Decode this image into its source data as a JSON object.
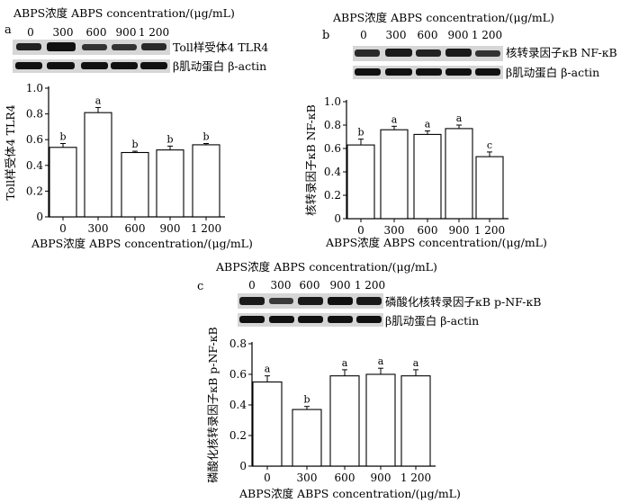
{
  "panel_a": {
    "letter": "a",
    "conc_title": "ABPS浓度 ABPS concentration/(μg/mL)",
    "conc_values": [
      "0",
      "300",
      "600",
      "900",
      "1 200"
    ],
    "blot_labels": [
      "Toll样受体4 TLR4",
      "β肌动蛋白 β-actin"
    ]
  },
  "panel_b": {
    "letter": "b",
    "conc_title": "ABPS浓度 ABPS concentration/(μg/mL)",
    "conc_values": [
      "0",
      "300",
      "600",
      "900",
      "1 200"
    ],
    "blot_labels": [
      "核转录因子κB NF-κB",
      "β肌动蛋白 β-actin"
    ]
  },
  "panel_c": {
    "letter": "c",
    "conc_title": "ABPS浓度 ABPS concentration/(μg/mL)",
    "conc_values": [
      "0",
      "300",
      "600",
      "900",
      "1 200"
    ],
    "blot_labels": [
      "磷酸化核转录因子κB p-NF-κB",
      "β肌动蛋白 β-actin"
    ]
  },
  "chart_data": [
    {
      "type": "bar",
      "categories": [
        "0",
        "300",
        "600",
        "900",
        "1 200"
      ],
      "values": [
        0.54,
        0.81,
        0.5,
        0.52,
        0.56
      ],
      "errors": [
        0.03,
        0.04,
        0.01,
        0.03,
        0.01
      ],
      "significance": [
        "b",
        "a",
        "b",
        "b",
        "b"
      ],
      "xlabel": "ABPS浓度 ABPS concentration/(μg/mL)",
      "ylabel": "Toll样受体4 TLR4",
      "ylim": [
        0,
        1.0
      ],
      "yticks": [
        "0",
        "0.2",
        "0.4",
        "0.6",
        "0.8",
        "1.0"
      ],
      "grid": false
    },
    {
      "type": "bar",
      "categories": [
        "0",
        "300",
        "600",
        "900",
        "1 200"
      ],
      "values": [
        0.63,
        0.76,
        0.72,
        0.77,
        0.53
      ],
      "errors": [
        0.05,
        0.03,
        0.03,
        0.03,
        0.04
      ],
      "significance": [
        "b",
        "a",
        "a",
        "a",
        "c"
      ],
      "xlabel": "ABPS浓度 ABPS concentration/(μg/mL)",
      "ylabel": "核转录因子κB NF-κB",
      "ylim": [
        0,
        1.0
      ],
      "yticks": [
        "0",
        "0.2",
        "0.4",
        "0.6",
        "0.8",
        "1.0"
      ],
      "grid": false
    },
    {
      "type": "bar",
      "categories": [
        "0",
        "300",
        "600",
        "900",
        "1 200"
      ],
      "values": [
        0.55,
        0.37,
        0.59,
        0.6,
        0.59
      ],
      "errors": [
        0.04,
        0.02,
        0.04,
        0.04,
        0.04
      ],
      "significance": [
        "a",
        "b",
        "a",
        "a",
        "a"
      ],
      "xlabel": "ABPS浓度 ABPS concentration/(μg/mL)",
      "ylabel": "磷酸化核转录因子κB p-NF-κB",
      "ylim": [
        0,
        0.8
      ],
      "yticks": [
        "0",
        "0.2",
        "0.4",
        "0.6",
        "0.8"
      ],
      "grid": false
    }
  ]
}
